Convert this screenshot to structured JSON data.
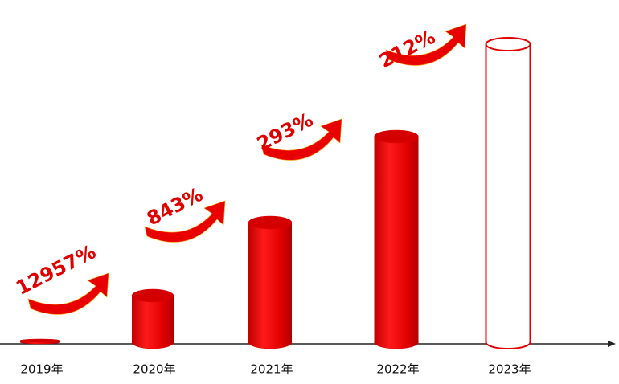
{
  "chart_data": {
    "type": "bar",
    "categories": [
      "2019年",
      "2020年",
      "2021年",
      "2022年",
      "2023年"
    ],
    "values": [
      4,
      60,
      151,
      258,
      373
    ],
    "fills": [
      "solid",
      "solid",
      "solid",
      "solid",
      "outline"
    ],
    "color": "#e00000",
    "ylim": [
      0,
      400
    ],
    "growth_labels": [
      "12957%",
      "843%",
      "293%",
      "212%"
    ]
  }
}
